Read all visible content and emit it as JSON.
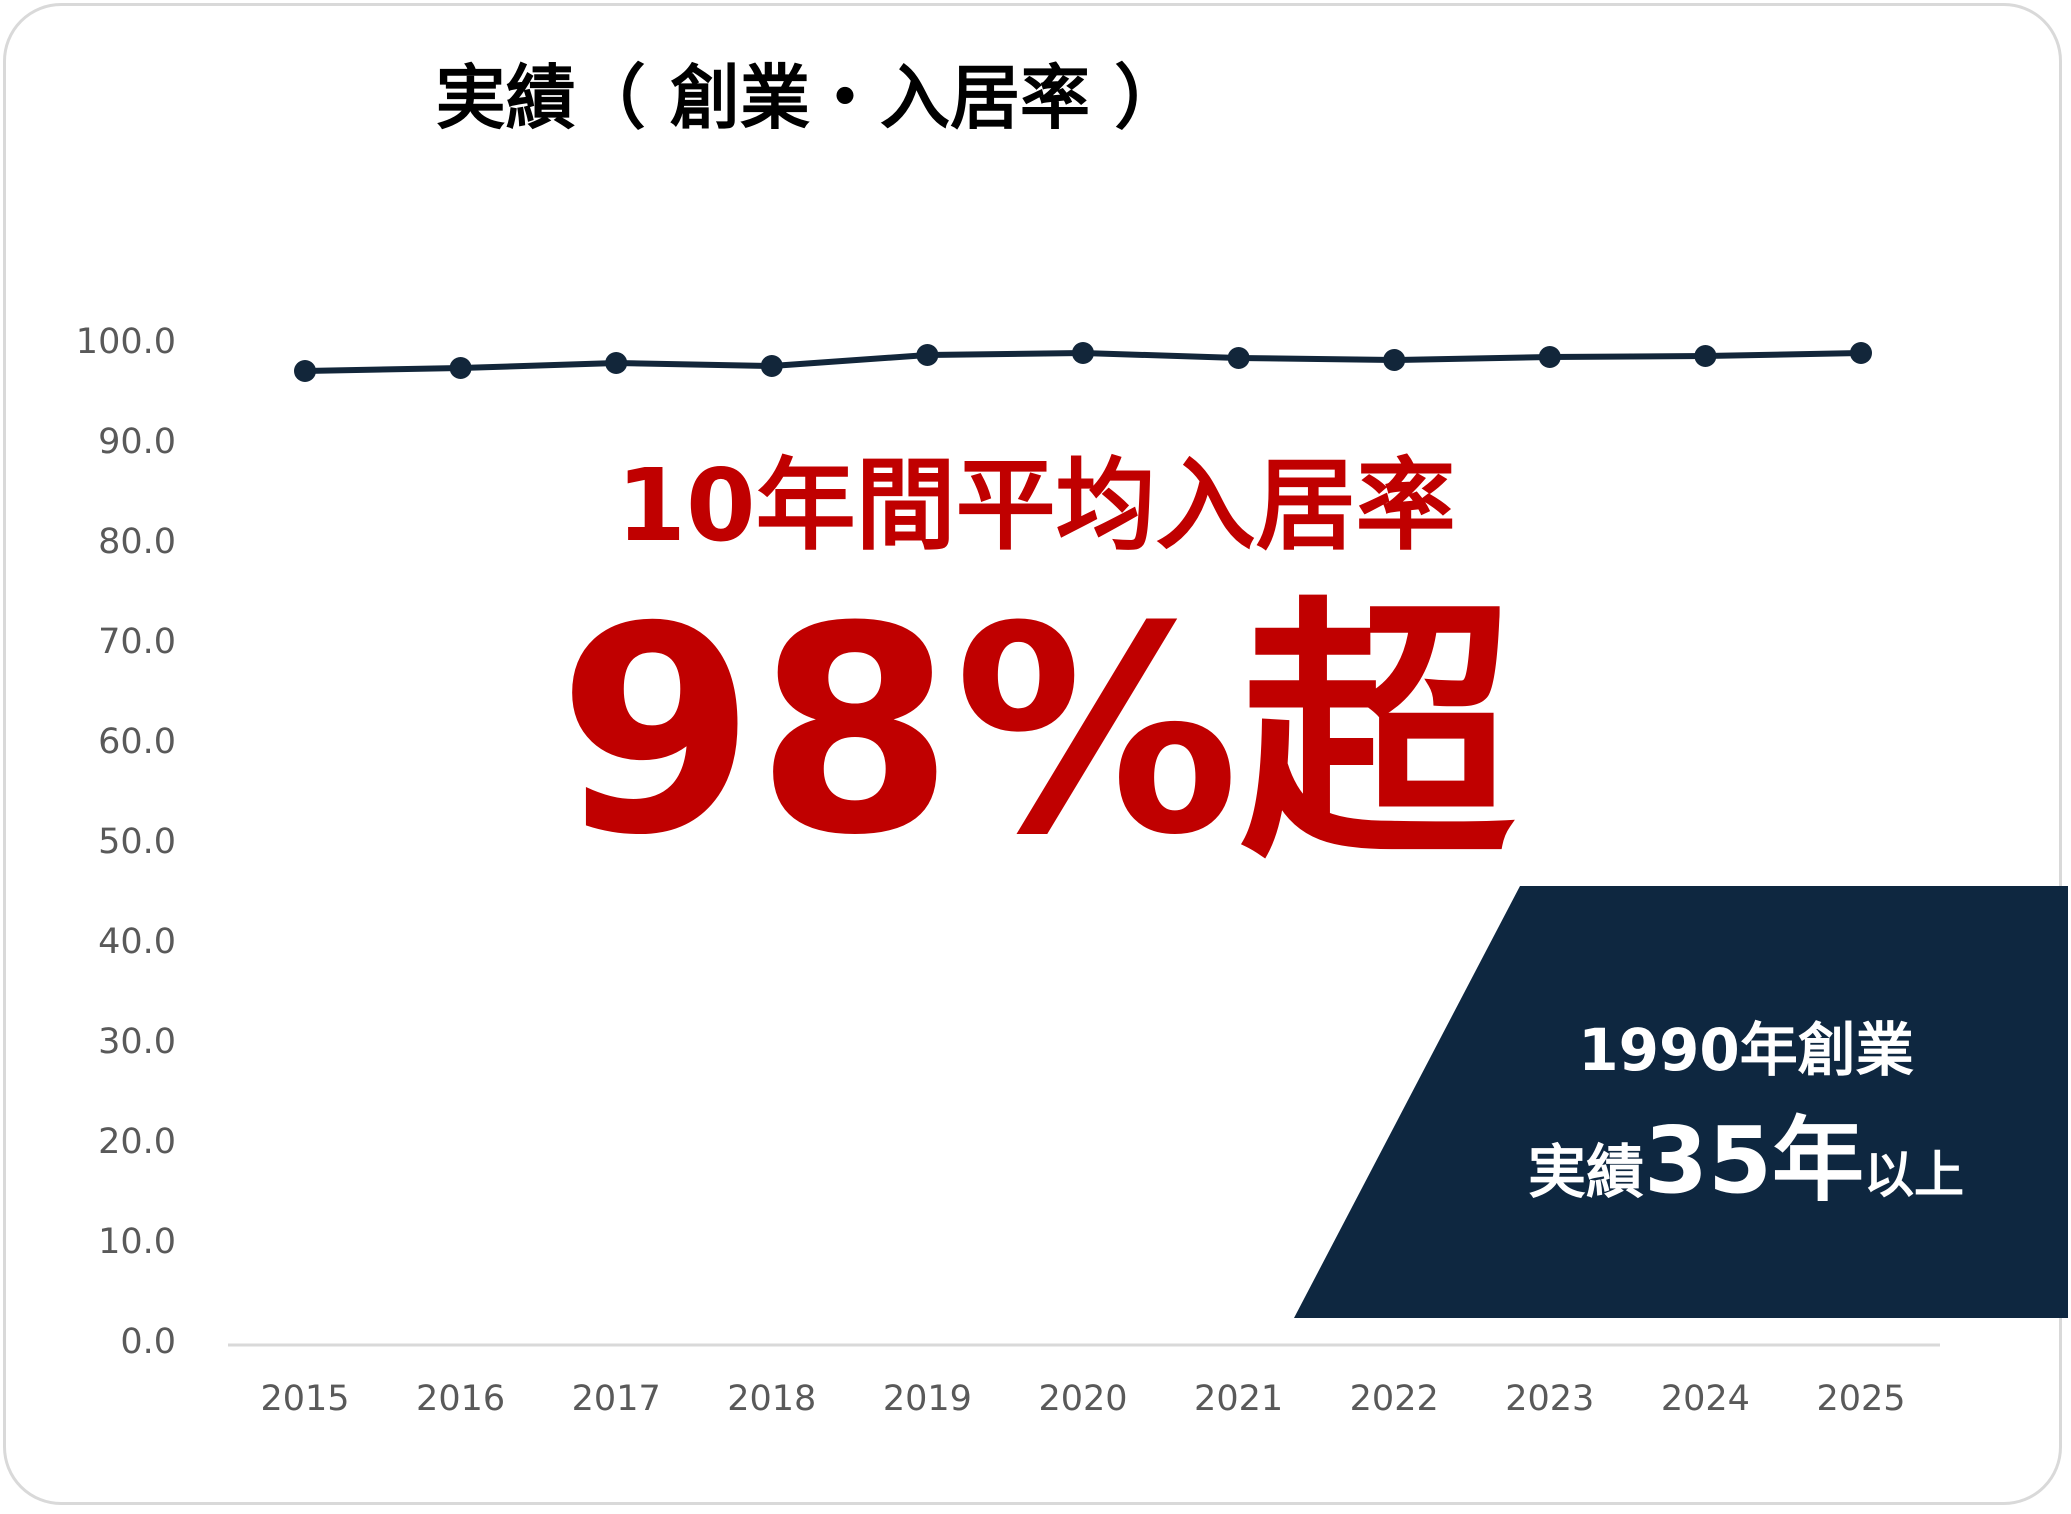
{
  "colors": {
    "line": "#12263a",
    "axis": "#d9d9d9",
    "highlight": "#c00000",
    "panel": "#0e2740",
    "tick_text": "#595959"
  },
  "chart_data": {
    "type": "line",
    "title": "実績（ 創業・入居率 ）",
    "xlabel": "",
    "ylabel": "",
    "ylim": [
      0,
      100
    ],
    "grid": false,
    "x": [
      "2015",
      "2016",
      "2017",
      "2018",
      "2019",
      "2020",
      "2021",
      "2022",
      "2023",
      "2024",
      "2025"
    ],
    "y_ticks": [
      "0.0",
      "10.0",
      "20.0",
      "30.0",
      "40.0",
      "50.0",
      "60.0",
      "70.0",
      "80.0",
      "90.0",
      "100.0"
    ],
    "series": [
      {
        "values": [
          97.0,
          97.3,
          97.8,
          97.5,
          98.6,
          98.8,
          98.3,
          98.1,
          98.4,
          98.5,
          98.8
        ]
      }
    ]
  },
  "headline": {
    "line1": "10年間平均入居率",
    "big_number": "98%",
    "big_suffix": "超"
  },
  "panel": {
    "line1": "1990年創業",
    "line2_prefix": "実績",
    "line2_number": "35年",
    "line2_suffix": "以上"
  }
}
